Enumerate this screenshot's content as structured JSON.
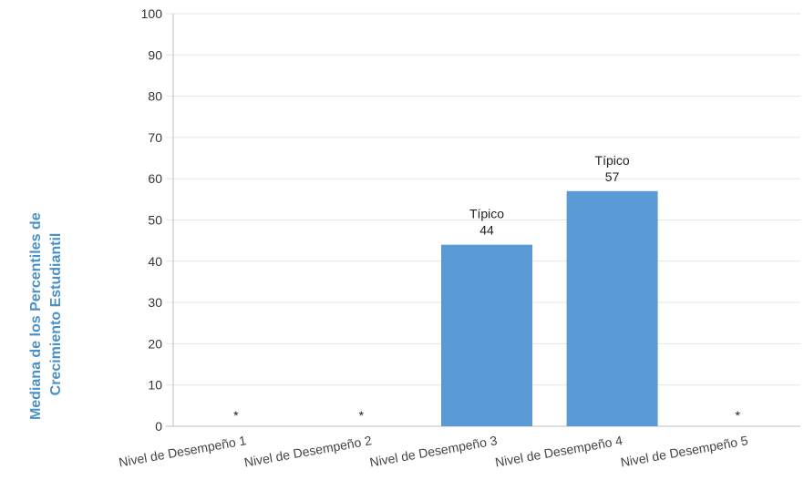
{
  "chart_data": {
    "type": "bar",
    "categories": [
      "Nivel de Desempeño 1",
      "Nivel de Desempeño 2",
      "Nivel de Desempeño 3",
      "Nivel de Desempeño 4",
      "Nivel de Desempeño 5"
    ],
    "values": [
      null,
      null,
      44,
      57,
      null
    ],
    "data_labels": [
      {
        "status": "",
        "value": "*"
      },
      {
        "status": "",
        "value": "*"
      },
      {
        "status": "Típico",
        "value": "44"
      },
      {
        "status": "Típico",
        "value": "57"
      },
      {
        "status": "",
        "value": "*"
      }
    ],
    "ylabel_lines": [
      "Mediana de los Percentiles de",
      "Crecimiento Estudiantil"
    ],
    "xlabel": "",
    "ylim": [
      0,
      100
    ],
    "yticks": [
      "0",
      "10",
      "20",
      "30",
      "40",
      "50",
      "60",
      "70",
      "80",
      "90",
      "100"
    ],
    "grid": true,
    "colors": {
      "bar": "#5b9bd5",
      "ylabel": "#4a90c8",
      "grid": "#e6e6e6",
      "axis": "#bfbfbf"
    }
  }
}
